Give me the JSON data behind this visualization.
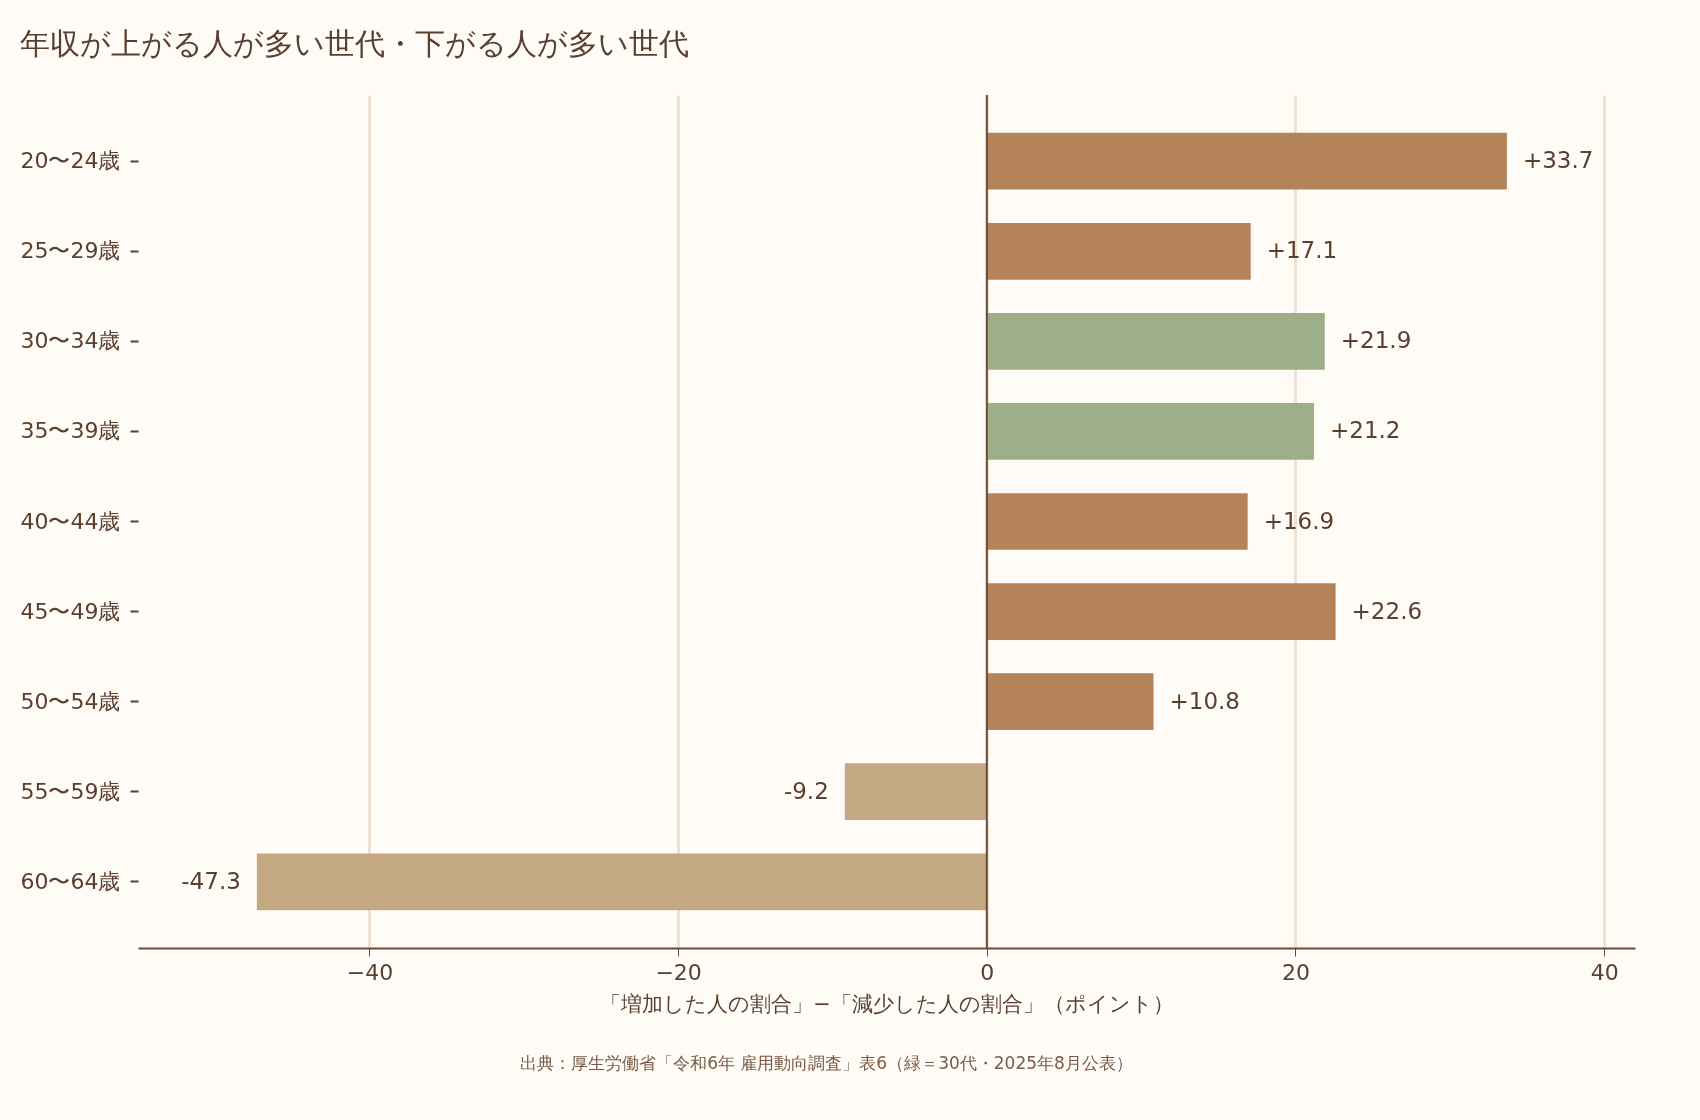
{
  "chart_data": {
    "type": "bar",
    "orientation": "horizontal",
    "title": "年収が上がる人が多い世代・下がる人が多い世代",
    "xlabel": "「増加した人の割合」−「減少した人の割合」（ポイント）",
    "categories": [
      "20〜24歳",
      "25〜29歳",
      "30〜34歳",
      "35〜39歳",
      "40〜44歳",
      "45〜49歳",
      "50〜54歳",
      "55〜59歳",
      "60〜64歳"
    ],
    "values": [
      33.7,
      17.1,
      21.9,
      21.2,
      16.9,
      22.6,
      10.8,
      -9.2,
      -47.3
    ],
    "colors": [
      "#b5835a",
      "#b5835a",
      "#9caf88",
      "#9caf88",
      "#b5835a",
      "#b5835a",
      "#b5835a",
      "#c4a882",
      "#c4a882"
    ],
    "value_labels": [
      "+33.7",
      "+17.1",
      "+21.9",
      "+21.2",
      "+16.9",
      "+22.6",
      "+10.8",
      "-9.2",
      "-47.3"
    ],
    "xlim": [
      -55,
      42
    ],
    "xticks": [
      {
        "value": -40,
        "label": "−40"
      },
      {
        "value": -20,
        "label": "−20"
      },
      0,
      20,
      40
    ],
    "grid": "x",
    "ref_lines": [
      {
        "axis": "x",
        "value": 0,
        "label": null,
        "color": "#6b4a35"
      }
    ],
    "annotations": [
      "出典：厚生労働省「令和6年 雇用動向調査」表6（緑＝30代・2025年8月公表）"
    ]
  }
}
